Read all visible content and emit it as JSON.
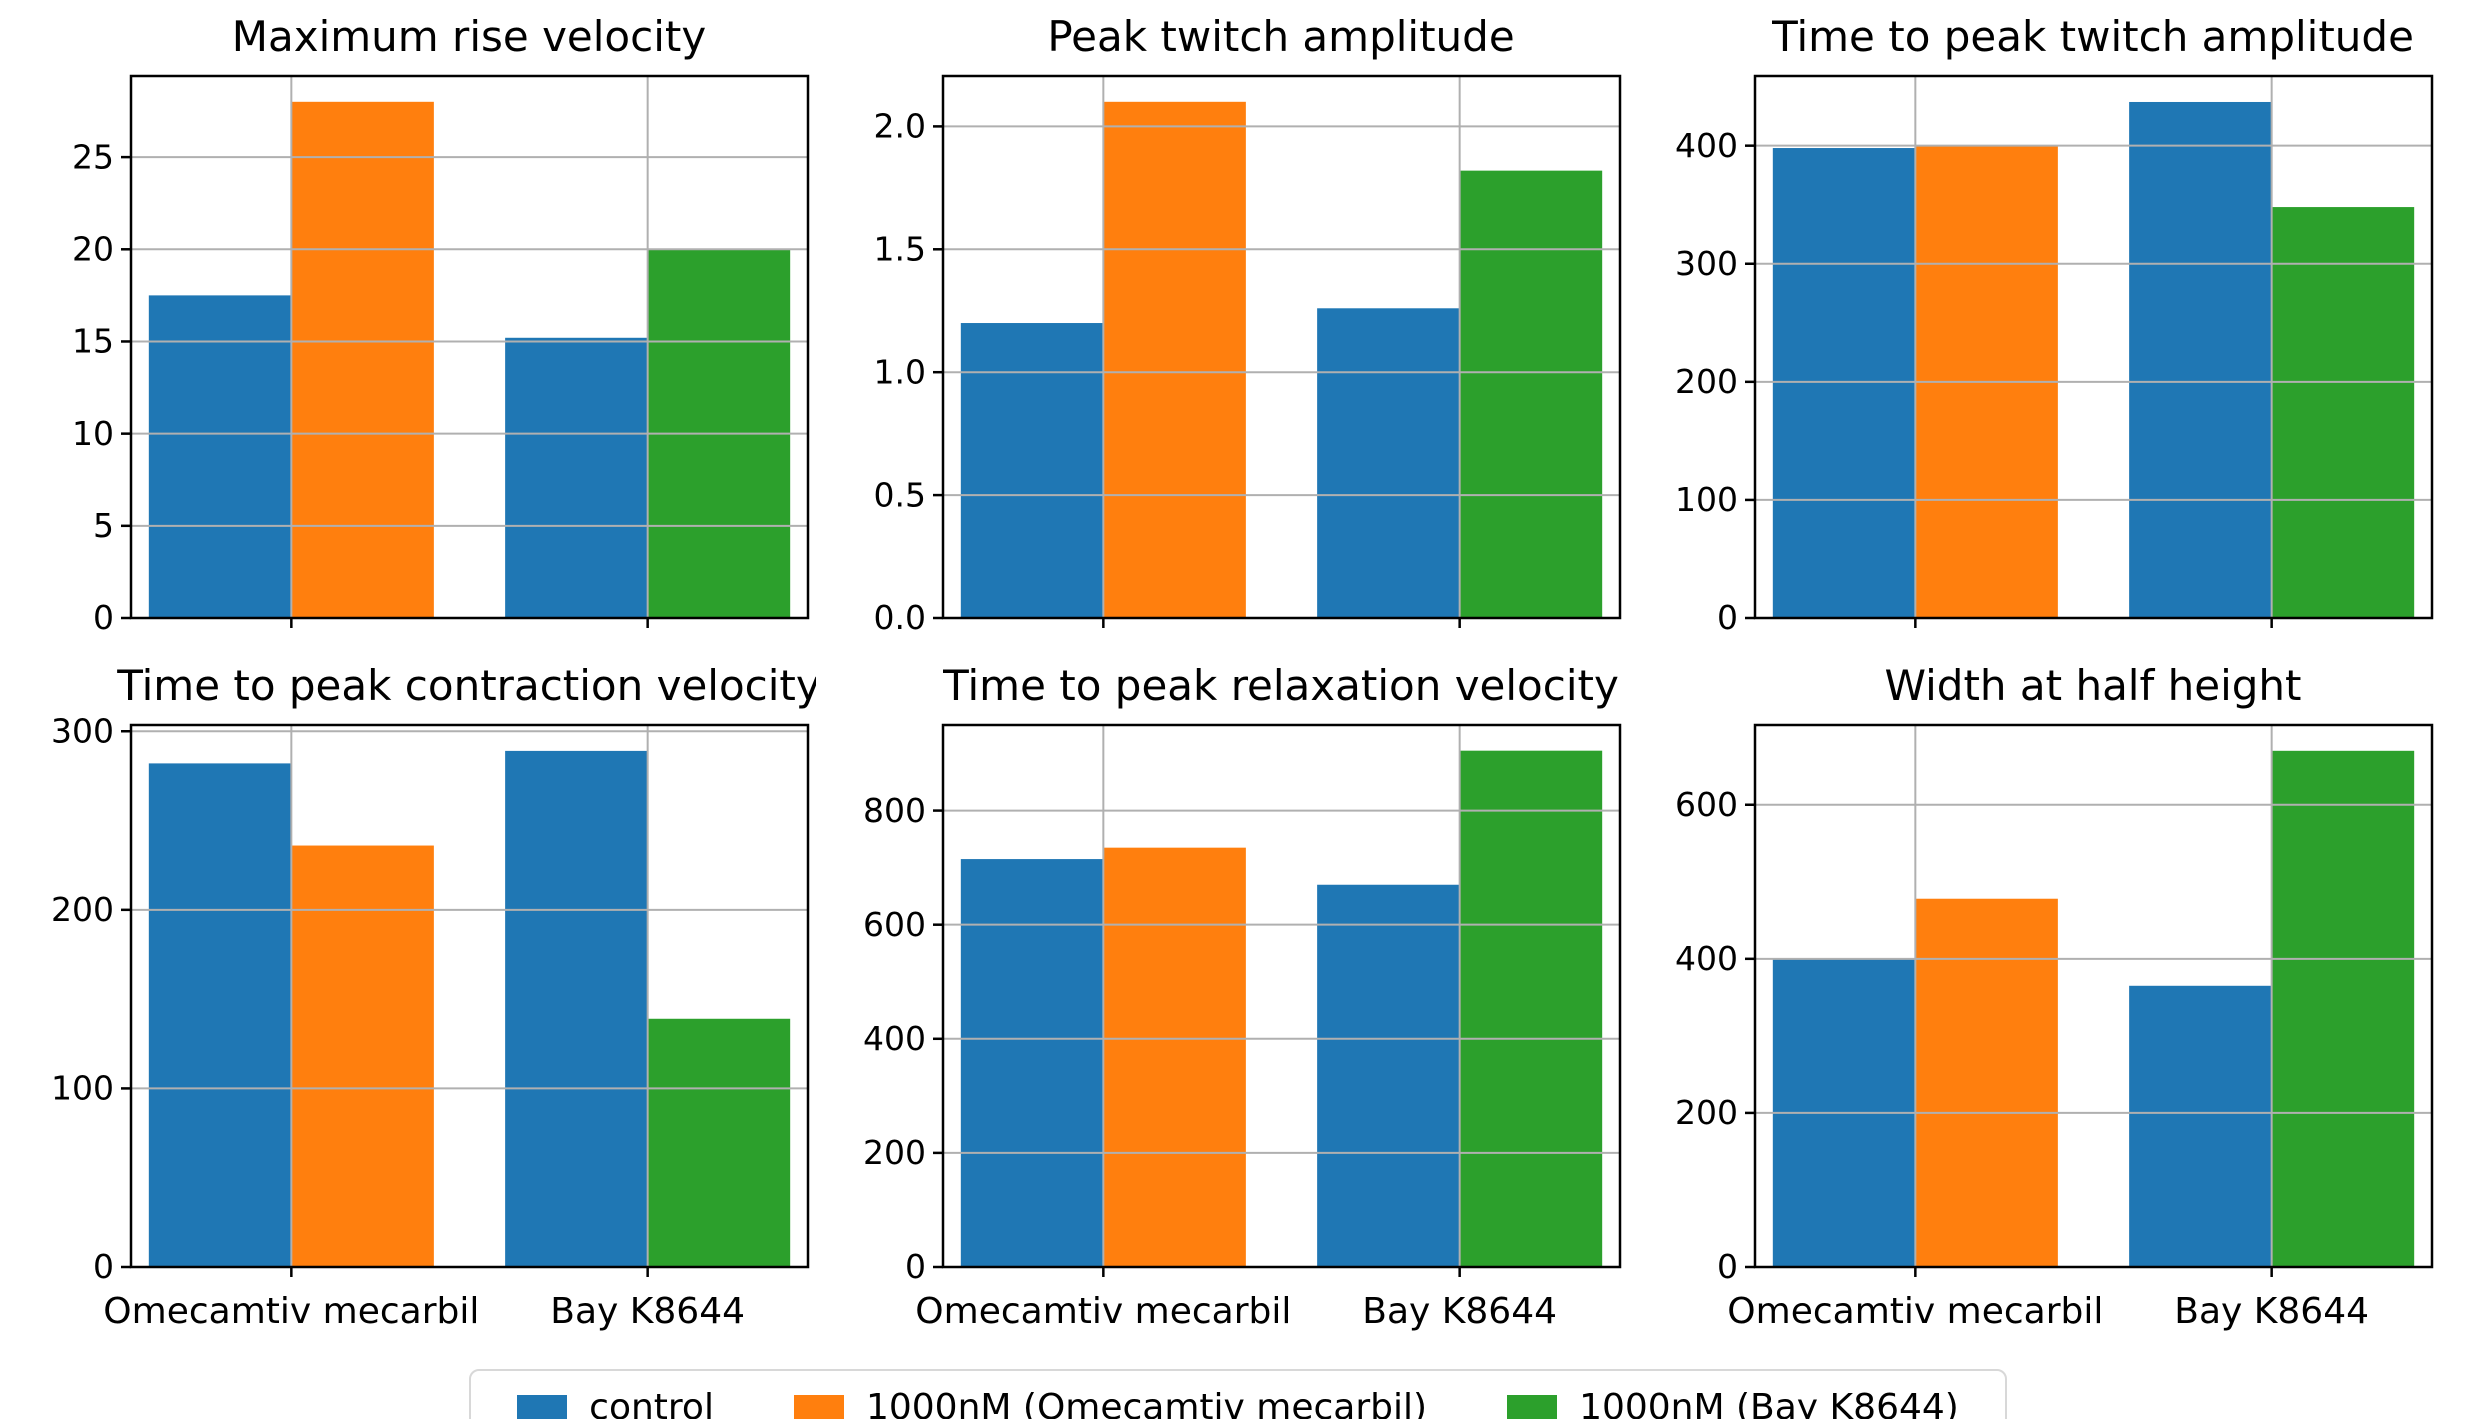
{
  "page": {
    "background": "#ffffff"
  },
  "style": {
    "grid_color": "#b0b0b0",
    "spine_color": "#000000",
    "bar_colors": {
      "control": "#1f77b4",
      "omecamtiv_1000nM": "#ff7f0e",
      "bayk8644_1000nM": "#2ca02c"
    }
  },
  "legend": {
    "items": [
      {
        "label": "control",
        "color": "#1f77b4"
      },
      {
        "label": "1000nM (Omecamtiv mecarbil)",
        "color": "#ff7f0e"
      },
      {
        "label": "1000nM (Bay K8644)",
        "color": "#2ca02c"
      }
    ],
    "position": "bottom-center"
  },
  "chart_data": [
    {
      "type": "bar",
      "title": "Maximum rise velocity",
      "categories": [
        "Omecamtiv mecarbil",
        "Bay K8644"
      ],
      "series": [
        {
          "name": "control",
          "colors": [
            "#1f77b4",
            "#1f77b4"
          ],
          "values": [
            17.5,
            15.2
          ]
        },
        {
          "name": "1000nM",
          "colors": [
            "#ff7f0e",
            "#2ca02c"
          ],
          "values": [
            28.0,
            20.0
          ]
        }
      ],
      "ylim": [
        0,
        29.4
      ],
      "yticks": [
        0,
        5,
        10,
        15,
        20,
        25
      ],
      "ytick_labels": [
        "0",
        "5",
        "10",
        "15",
        "20",
        "25"
      ],
      "grid": true,
      "show_xticklabels": false
    },
    {
      "type": "bar",
      "title": "Peak twitch amplitude",
      "categories": [
        "Omecamtiv mecarbil",
        "Bay K8644"
      ],
      "series": [
        {
          "name": "control",
          "colors": [
            "#1f77b4",
            "#1f77b4"
          ],
          "values": [
            1.2,
            1.26
          ]
        },
        {
          "name": "1000nM",
          "colors": [
            "#ff7f0e",
            "#2ca02c"
          ],
          "values": [
            2.1,
            1.82
          ]
        }
      ],
      "ylim": [
        0,
        2.205
      ],
      "yticks": [
        0,
        0.5,
        1.0,
        1.5,
        2.0
      ],
      "ytick_labels": [
        "0.0",
        "0.5",
        "1.0",
        "1.5",
        "2.0"
      ],
      "grid": true,
      "show_xticklabels": false
    },
    {
      "type": "bar",
      "title": "Time to peak twitch amplitude",
      "categories": [
        "Omecamtiv mecarbil",
        "Bay K8644"
      ],
      "series": [
        {
          "name": "control",
          "colors": [
            "#1f77b4",
            "#1f77b4"
          ],
          "values": [
            398,
            437
          ]
        },
        {
          "name": "1000nM",
          "colors": [
            "#ff7f0e",
            "#2ca02c"
          ],
          "values": [
            400,
            348
          ]
        }
      ],
      "ylim": [
        0,
        459
      ],
      "yticks": [
        0,
        100,
        200,
        300,
        400
      ],
      "ytick_labels": [
        "0",
        "100",
        "200",
        "300",
        "400"
      ],
      "grid": true,
      "show_xticklabels": false
    },
    {
      "type": "bar",
      "title": "Time to peak contraction velocity",
      "categories": [
        "Omecamtiv mecarbil",
        "Bay K8644"
      ],
      "series": [
        {
          "name": "control",
          "colors": [
            "#1f77b4",
            "#1f77b4"
          ],
          "values": [
            282,
            289
          ]
        },
        {
          "name": "1000nM",
          "colors": [
            "#ff7f0e",
            "#2ca02c"
          ],
          "values": [
            236,
            139
          ]
        }
      ],
      "ylim": [
        0,
        303.5
      ],
      "yticks": [
        0,
        100,
        200,
        300
      ],
      "ytick_labels": [
        "0",
        "100",
        "200",
        "300"
      ],
      "grid": true,
      "show_xticklabels": true
    },
    {
      "type": "bar",
      "title": "Time to peak relaxation velocity",
      "categories": [
        "Omecamtiv mecarbil",
        "Bay K8644"
      ],
      "series": [
        {
          "name": "control",
          "colors": [
            "#1f77b4",
            "#1f77b4"
          ],
          "values": [
            715,
            670
          ]
        },
        {
          "name": "1000nM",
          "colors": [
            "#ff7f0e",
            "#2ca02c"
          ],
          "values": [
            735,
            905
          ]
        }
      ],
      "ylim": [
        0,
        950
      ],
      "yticks": [
        0,
        200,
        400,
        600,
        800
      ],
      "ytick_labels": [
        "0",
        "200",
        "400",
        "600",
        "800"
      ],
      "grid": true,
      "show_xticklabels": true
    },
    {
      "type": "bar",
      "title": "Width at half height",
      "categories": [
        "Omecamtiv mecarbil",
        "Bay K8644"
      ],
      "series": [
        {
          "name": "control",
          "colors": [
            "#1f77b4",
            "#1f77b4"
          ],
          "values": [
            400,
            365
          ]
        },
        {
          "name": "1000nM",
          "colors": [
            "#ff7f0e",
            "#2ca02c"
          ],
          "values": [
            478,
            670
          ]
        }
      ],
      "ylim": [
        0,
        703.5
      ],
      "yticks": [
        0,
        200,
        400,
        600
      ],
      "ytick_labels": [
        "0",
        "200",
        "400",
        "600"
      ],
      "grid": true,
      "show_xticklabels": true
    }
  ]
}
